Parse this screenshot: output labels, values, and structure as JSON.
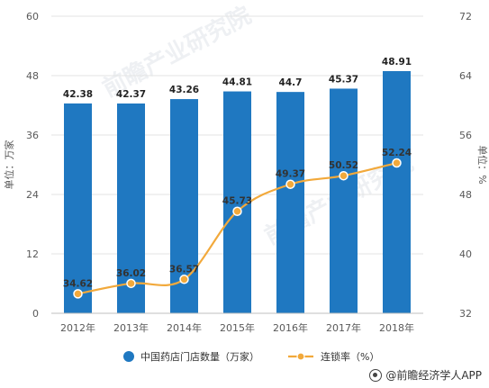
{
  "chart_data": {
    "type": "bar+line",
    "categories": [
      "2012年",
      "2013年",
      "2014年",
      "2015年",
      "2016年",
      "2017年",
      "2018年"
    ],
    "series": [
      {
        "name": "中国药店门店数量（万家）",
        "type": "bar",
        "axis": "left",
        "color": "#1f78c1",
        "values": [
          42.38,
          42.37,
          43.26,
          44.81,
          44.7,
          45.37,
          48.91
        ]
      },
      {
        "name": "连锁率（%）",
        "type": "line",
        "axis": "right",
        "color": "#f2a93b",
        "values": [
          34.62,
          36.02,
          36.57,
          45.73,
          49.37,
          50.52,
          52.24
        ]
      }
    ],
    "ylabel": "单位：万家",
    "ylabel_right": "单位：%",
    "ylim": [
      0,
      60
    ],
    "yticks": [
      0,
      12,
      24,
      36,
      48,
      60
    ],
    "ylim_right": [
      32,
      72
    ],
    "yticks_right": [
      32,
      40,
      48,
      56,
      64,
      72
    ],
    "legend_position": "bottom",
    "watermark": "前瞻产业研究院"
  },
  "footer": {
    "text": "@前瞻经济学人APP"
  }
}
